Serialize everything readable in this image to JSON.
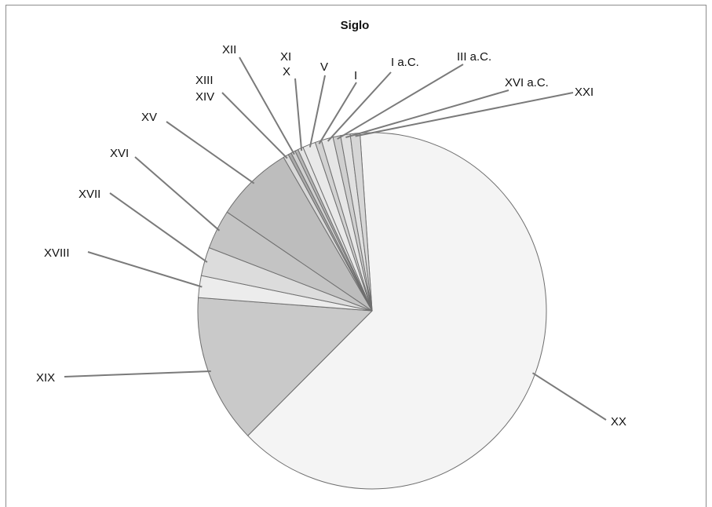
{
  "chart_data": {
    "type": "pie",
    "title": "Siglo",
    "start_angle_deg": -4.0,
    "slices": [
      {
        "label": "XX",
        "value": 64.0,
        "color": "#f4f4f4"
      },
      {
        "label": "XIX",
        "value": 13.6,
        "color": "#c9c9c9"
      },
      {
        "label": "XVIII",
        "value": 2.0,
        "color": "#ececec"
      },
      {
        "label": "XVII",
        "value": 2.6,
        "color": "#dcdcdc"
      },
      {
        "label": "XVI",
        "value": 3.6,
        "color": "#c4c4c4"
      },
      {
        "label": "XV",
        "value": 7.2,
        "color": "#bdbdbd"
      },
      {
        "label": "XIV",
        "value": 0.5,
        "color": "#d9d9d9"
      },
      {
        "label": "XIII",
        "value": 0.3,
        "color": "#a8a8a8"
      },
      {
        "label": "XII",
        "value": 0.4,
        "color": "#d0d0d0"
      },
      {
        "label": "XI",
        "value": 0.3,
        "color": "#b5b5b5"
      },
      {
        "label": "X",
        "value": 0.5,
        "color": "#e4e4e4"
      },
      {
        "label": "V",
        "value": 1.2,
        "color": "#e9e9e9"
      },
      {
        "label": "I",
        "value": 0.6,
        "color": "#d2d2d2"
      },
      {
        "label": "I a.C.",
        "value": 1.1,
        "color": "#e6e6e6"
      },
      {
        "label": "III a.C.",
        "value": 0.7,
        "color": "#cfcfcf"
      },
      {
        "label": "XVI a.C.",
        "value": 0.9,
        "color": "#e0e0e0"
      },
      {
        "label": "XXI",
        "value": 0.9,
        "color": "#d6d6d6"
      }
    ]
  }
}
